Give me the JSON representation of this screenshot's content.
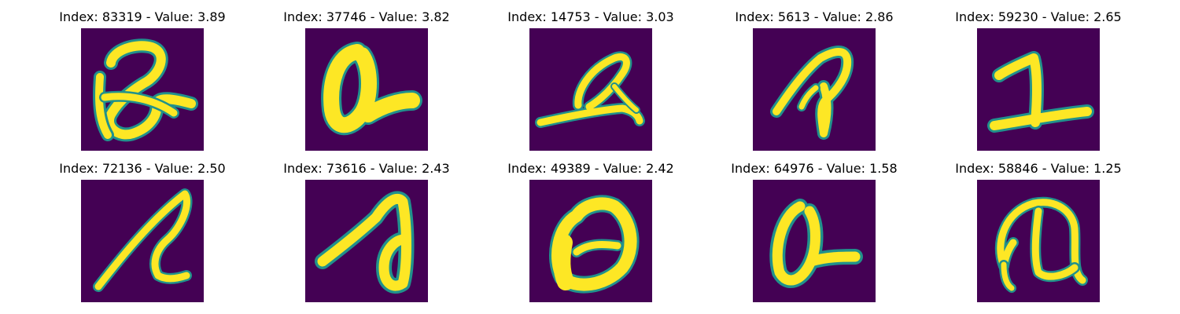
{
  "figure": {
    "colormap": [
      "#440154",
      "#21918c",
      "#5ec962",
      "#fde725"
    ],
    "panels": [
      {
        "index": 83319,
        "value": 3.89,
        "title": "Index: 83319 - Value: 3.89",
        "glyph": "a-loop-crossed"
      },
      {
        "index": 37746,
        "value": 3.82,
        "title": "Index: 37746 - Value: 3.82",
        "glyph": "a-bold-tail"
      },
      {
        "index": 14753,
        "value": 3.03,
        "title": "Index: 14753 - Value: 3.03",
        "glyph": "a-slanted-flat"
      },
      {
        "index": 5613,
        "value": 2.86,
        "title": "Index: 5613 - Value: 2.86",
        "glyph": "a-pointed"
      },
      {
        "index": 59230,
        "value": 2.65,
        "title": "Index: 59230 - Value: 2.65",
        "glyph": "one-shaped"
      },
      {
        "index": 72136,
        "value": 2.5,
        "title": "Index: 72136 - Value: 2.50",
        "glyph": "a-long-slash"
      },
      {
        "index": 73616,
        "value": 2.43,
        "title": "Index: 73616 - Value: 2.43",
        "glyph": "a-wide-bowl"
      },
      {
        "index": 49389,
        "value": 2.42,
        "title": "Index: 49389 - Value: 2.42",
        "glyph": "a-round-heavy"
      },
      {
        "index": 64976,
        "value": 1.58,
        "title": "Index: 64976 - Value: 1.58",
        "glyph": "a-compact"
      },
      {
        "index": 58846,
        "value": 1.25,
        "title": "Index: 58846 - Value: 1.25",
        "glyph": "a-arched"
      }
    ]
  }
}
